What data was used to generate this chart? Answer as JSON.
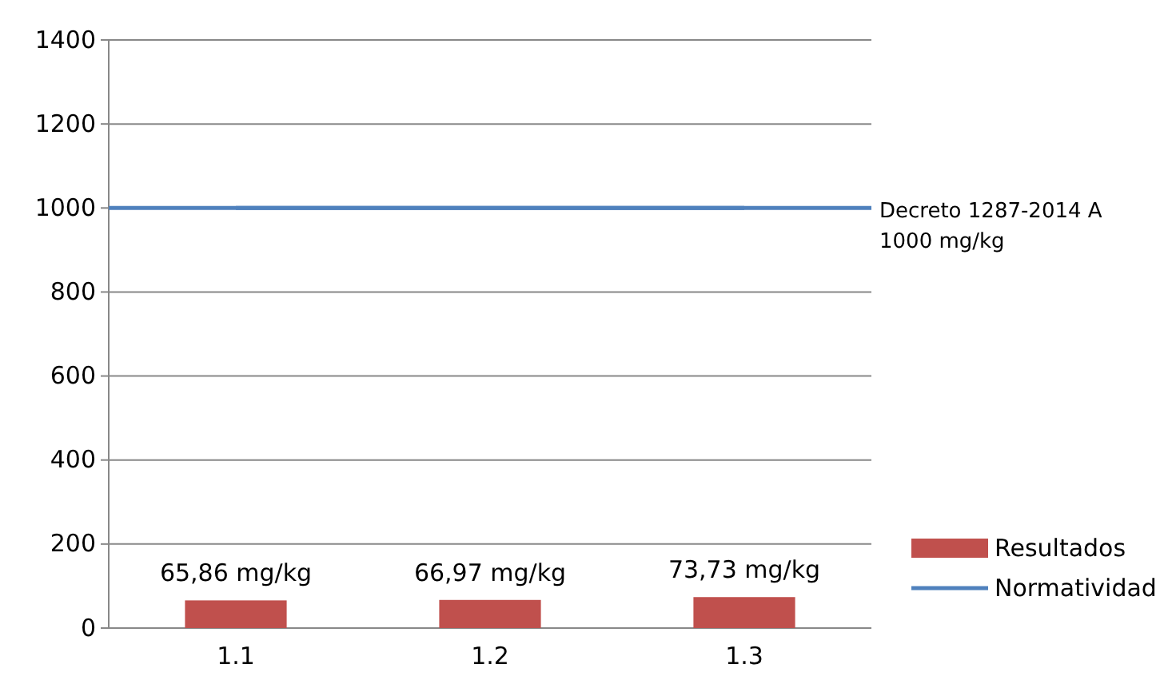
{
  "chart_data": {
    "type": "bar",
    "categories": [
      "1.1",
      "1.2",
      "1.3"
    ],
    "series": [
      {
        "name": "Resultados",
        "color": "#c0504d",
        "values": [
          65.86,
          66.97,
          73.73
        ],
        "value_labels": [
          "65,86 mg/kg",
          "66,97 mg/kg",
          "73,73 mg/kg"
        ]
      },
      {
        "name": "Normatividad",
        "type": "line",
        "color": "#4f81bd",
        "values": [
          1000,
          1000,
          1000
        ]
      }
    ],
    "ylim": [
      0,
      1400
    ],
    "yticks": [
      0,
      200,
      400,
      600,
      800,
      1000,
      1200,
      1400
    ],
    "grid": "y",
    "legend": "bottom right",
    "ref_lines": [
      {
        "axis": "y",
        "value": 1000,
        "label": "Decreto 1287-2014 A 1000 mg/kg",
        "color": "#4f81bd"
      }
    ]
  }
}
